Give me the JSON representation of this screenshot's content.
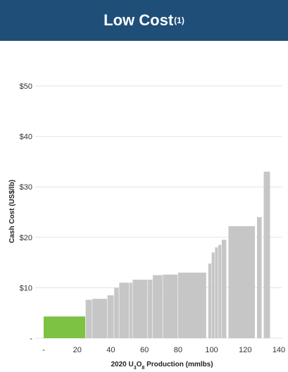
{
  "header": {
    "title": "Low Cost",
    "superscript": "(1)"
  },
  "chart_data": {
    "type": "bar",
    "xlabel": "2020 U3O8 Production (mmlbs)",
    "ylabel": "Cash Cost (US$/lb)",
    "xlim": [
      0,
      140
    ],
    "ylim": [
      0,
      50
    ],
    "x_ticks": [
      "-",
      "20",
      "40",
      "60",
      "80",
      "100",
      "120",
      "140"
    ],
    "x_tick_values": [
      0,
      20,
      40,
      60,
      80,
      100,
      120,
      140
    ],
    "y_ticks": [
      "-",
      "$10",
      "$20",
      "$30",
      "$40",
      "$50"
    ],
    "y_tick_values": [
      0,
      10,
      20,
      30,
      40,
      50
    ],
    "grid": true,
    "colors": {
      "highlight": "#7dc242",
      "others": "#c6c6c6",
      "banner": "#1f4e79"
    },
    "bars": [
      {
        "x0": 0,
        "x1": 25,
        "value": 4.3,
        "highlight": true
      },
      {
        "x0": 25,
        "x1": 29,
        "value": 7.6
      },
      {
        "x0": 29,
        "x1": 38,
        "value": 7.8
      },
      {
        "x0": 38,
        "x1": 42,
        "value": 8.5
      },
      {
        "x0": 42,
        "x1": 45,
        "value": 10.0
      },
      {
        "x0": 45,
        "x1": 51,
        "value": 11.0
      },
      {
        "x0": 51,
        "x1": 53,
        "value": 11.0
      },
      {
        "x0": 53,
        "x1": 62,
        "value": 11.6
      },
      {
        "x0": 62,
        "x1": 65,
        "value": 11.6
      },
      {
        "x0": 65,
        "x1": 71,
        "value": 12.5
      },
      {
        "x0": 71,
        "x1": 80,
        "value": 12.6
      },
      {
        "x0": 80,
        "x1": 97,
        "value": 13.0
      },
      {
        "x0": 98,
        "x1": 100,
        "value": 14.8
      },
      {
        "x0": 100,
        "x1": 102,
        "value": 17.0
      },
      {
        "x0": 102,
        "x1": 104,
        "value": 18.0
      },
      {
        "x0": 104,
        "x1": 106,
        "value": 18.5
      },
      {
        "x0": 106,
        "x1": 109,
        "value": 19.5
      },
      {
        "x0": 110,
        "x1": 126,
        "value": 22.2
      },
      {
        "x0": 127,
        "x1": 130,
        "value": 24.0
      },
      {
        "x0": 131,
        "x1": 135,
        "value": 33.0
      }
    ]
  }
}
